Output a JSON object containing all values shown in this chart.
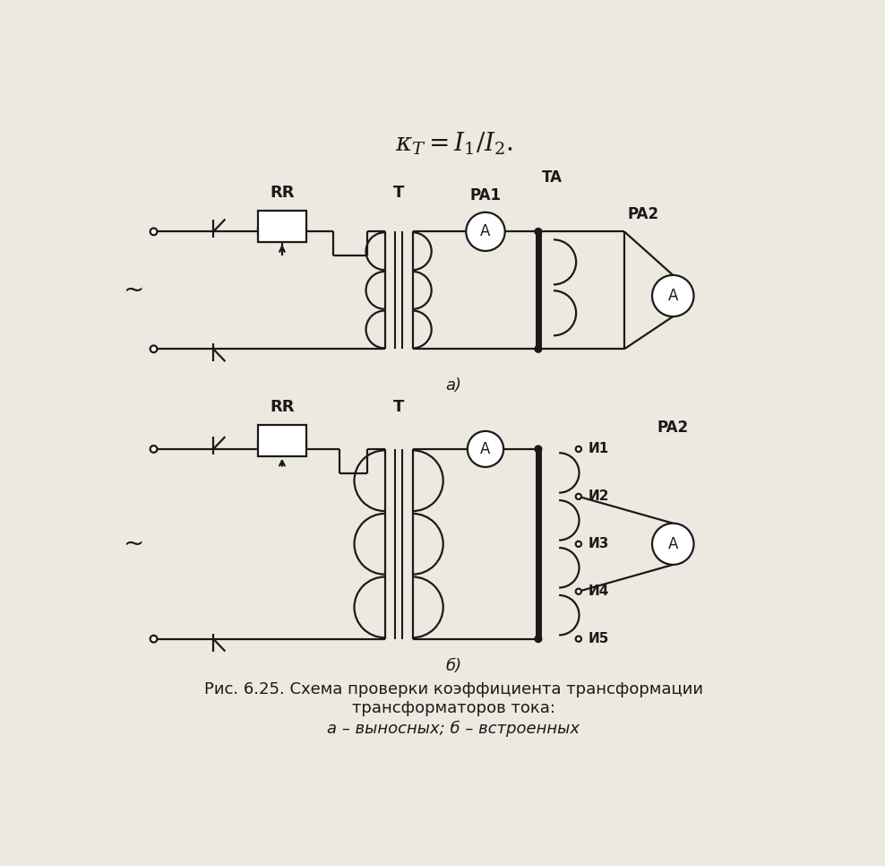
{
  "bg_color": "#ede9e0",
  "line_color": "#1a1a1a",
  "font_color": "#1a1a1a",
  "caption_line1": "Рис. 6.25. Схема проверки коэффициента трансформации",
  "caption_line2": "трансформаторов тока:",
  "caption_line3": "а – выносных; б – встроенных"
}
